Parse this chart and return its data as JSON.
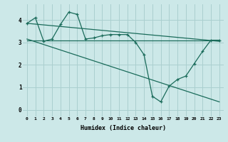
{
  "bg_color": "#cce8e8",
  "grid_color": "#aacfcf",
  "line_color": "#1a6b5a",
  "xlabel": "Humidex (Indice chaleur)",
  "x_ticks": [
    0,
    1,
    2,
    3,
    4,
    5,
    6,
    7,
    8,
    9,
    10,
    11,
    12,
    13,
    14,
    15,
    16,
    17,
    18,
    19,
    20,
    21,
    22,
    23
  ],
  "ylim": [
    -0.3,
    4.7
  ],
  "xlim": [
    -0.5,
    23.5
  ],
  "line1_x": [
    0,
    1,
    2,
    3,
    4,
    5,
    6,
    7,
    8,
    9,
    10,
    11,
    12,
    13,
    14,
    15,
    16,
    17,
    18,
    19,
    20,
    21,
    22,
    23
  ],
  "line1_y": [
    3.85,
    4.1,
    3.05,
    3.15,
    3.8,
    4.35,
    4.25,
    3.15,
    3.2,
    3.3,
    3.35,
    3.35,
    3.35,
    3.0,
    2.45,
    0.6,
    0.35,
    1.05,
    1.35,
    1.5,
    2.05,
    2.6,
    3.1,
    3.1
  ],
  "line2_x": [
    0,
    23
  ],
  "line2_y": [
    3.85,
    3.05
  ],
  "line3_x": [
    0,
    23
  ],
  "line3_y": [
    3.15,
    0.35
  ],
  "line4_x": [
    0,
    14,
    23
  ],
  "line4_y": [
    3.1,
    3.1,
    3.1
  ]
}
